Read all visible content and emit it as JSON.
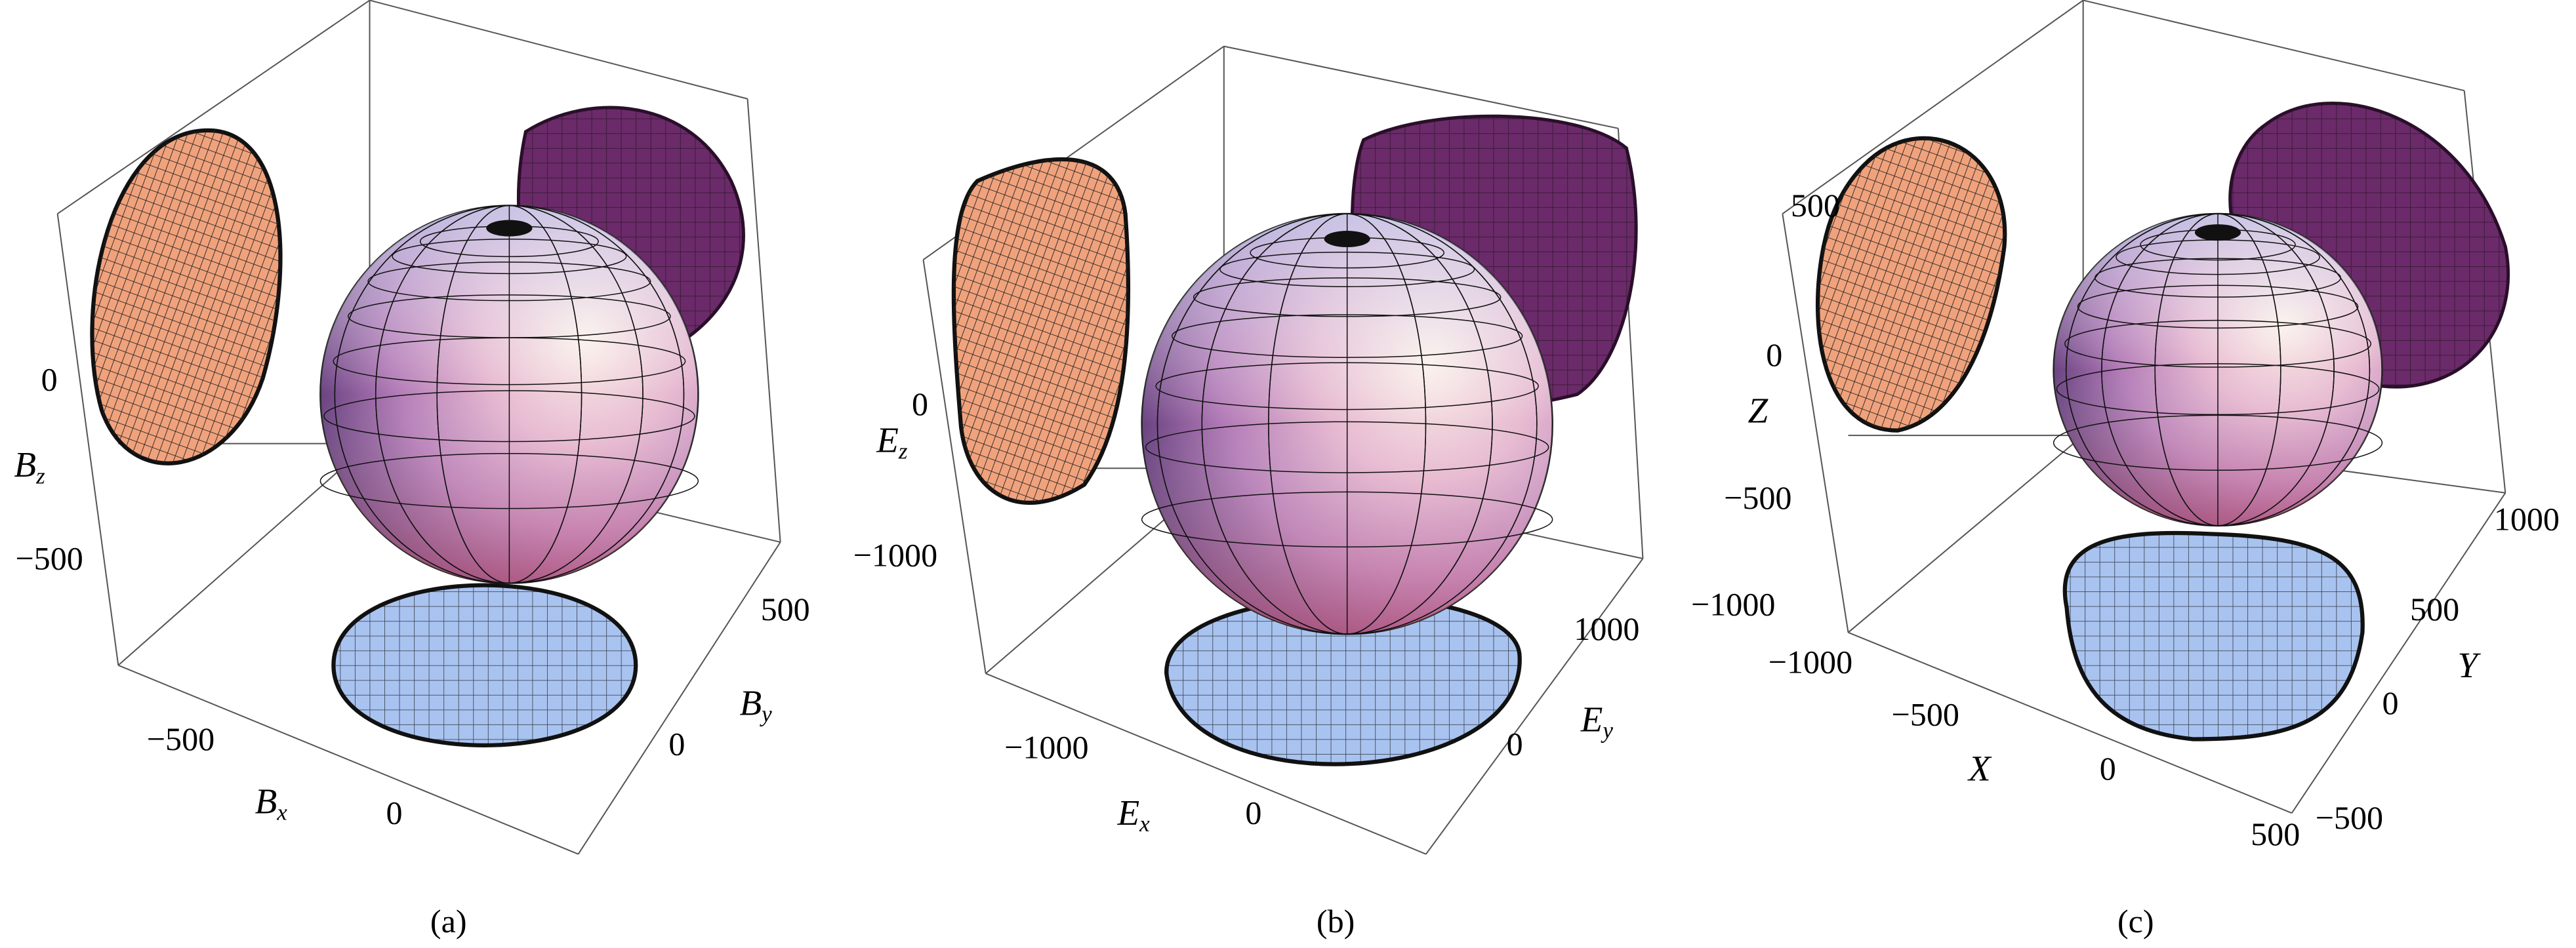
{
  "panels": [
    {
      "caption": "(a)",
      "z_axis": {
        "symbol": "B",
        "sub": "z",
        "ticks": [
          "0",
          "−500"
        ]
      },
      "x_axis": {
        "symbol": "B",
        "sub": "x",
        "ticks": [
          "−500",
          "0"
        ]
      },
      "y_axis": {
        "symbol": "B",
        "sub": "y",
        "ticks": [
          "500",
          "0"
        ]
      }
    },
    {
      "caption": "(b)",
      "z_axis": {
        "symbol": "E",
        "sub": "z",
        "ticks": [
          "0",
          "−1000"
        ]
      },
      "x_axis": {
        "symbol": "E",
        "sub": "x",
        "ticks": [
          "−1000",
          "0"
        ]
      },
      "y_axis": {
        "symbol": "E",
        "sub": "y",
        "ticks": [
          "1000",
          "0"
        ]
      }
    },
    {
      "caption": "(c)",
      "z_axis": {
        "symbol": "Z",
        "ticks": [
          "500",
          "0",
          "−500",
          "−1000"
        ]
      },
      "x_axis": {
        "symbol": "X",
        "ticks": [
          "−1000",
          "−500",
          "0",
          "500"
        ]
      },
      "y_axis": {
        "symbol": "Y",
        "ticks": [
          "1000",
          "500",
          "0",
          "−500"
        ]
      }
    }
  ]
}
